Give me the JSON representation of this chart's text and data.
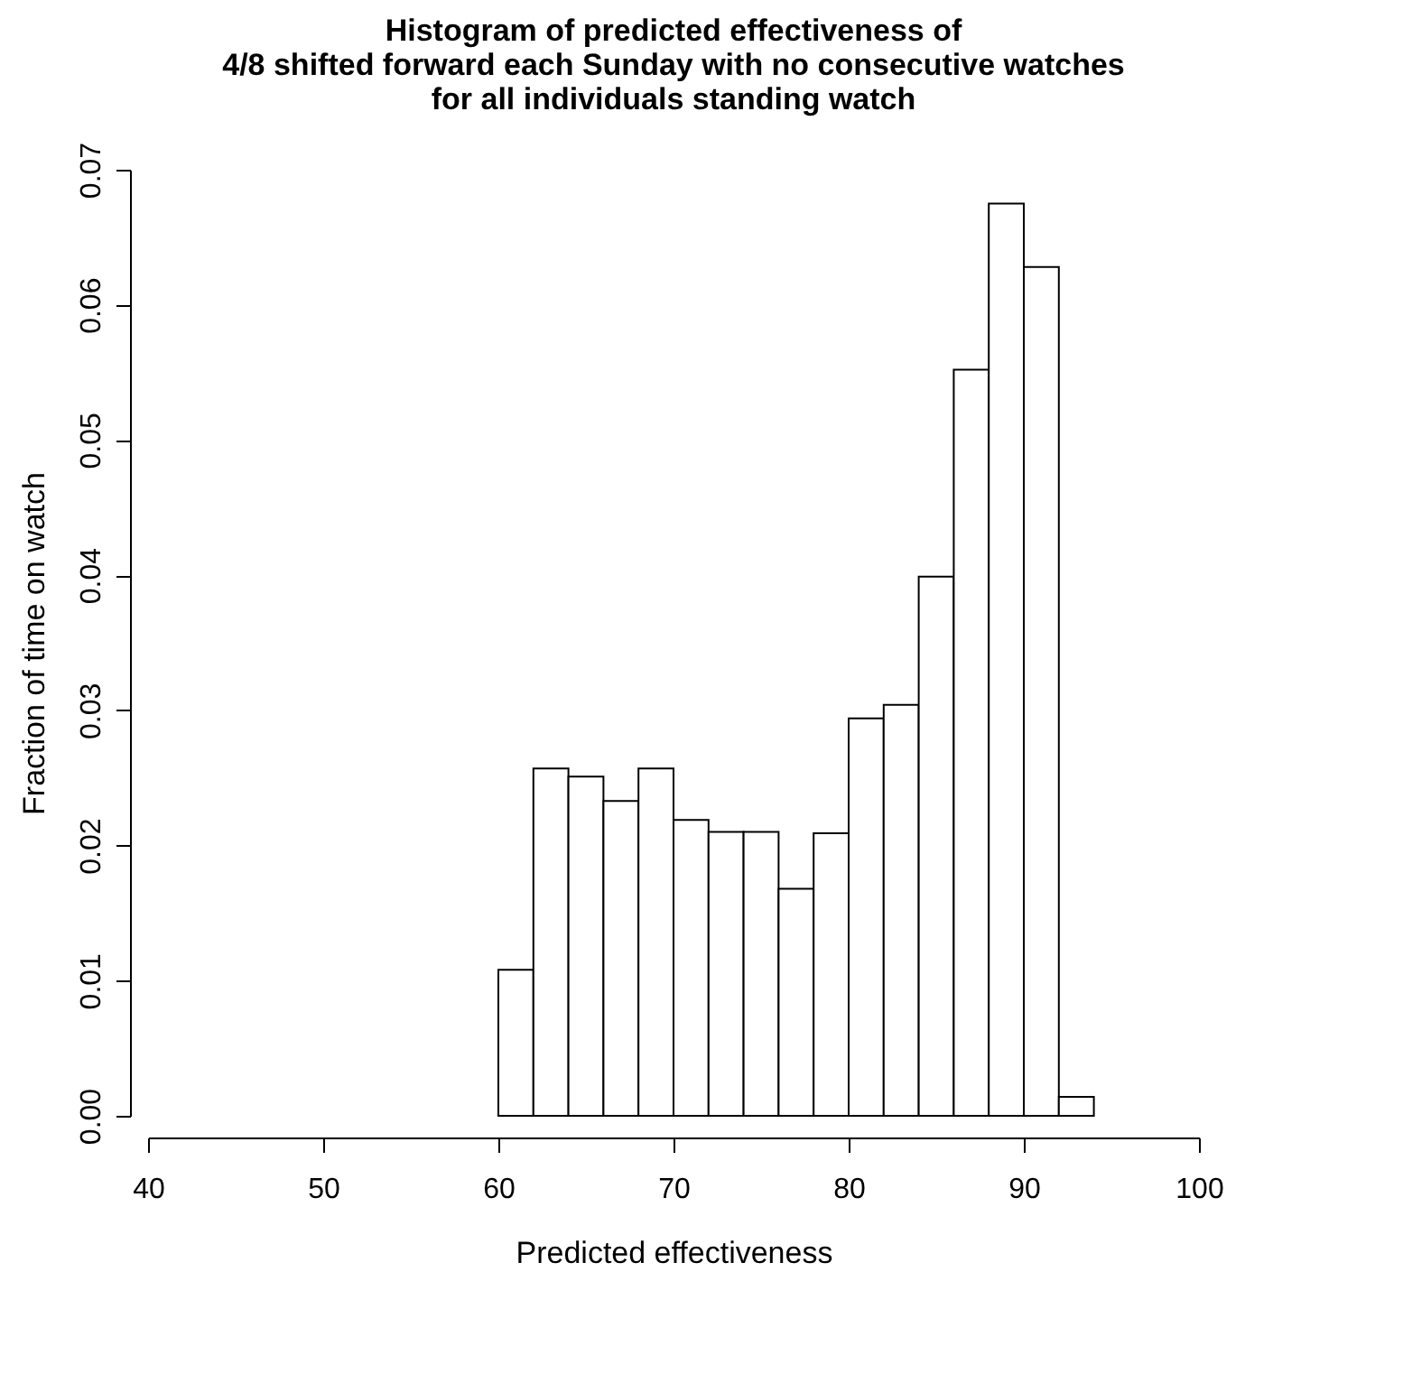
{
  "chart_data": {
    "type": "histogram",
    "title": "Histogram of predicted effectiveness of\n4/8 shifted forward each Sunday with no consecutive watches\nfor all individuals standing watch",
    "xlabel": "Predicted effectiveness",
    "ylabel": "Fraction of time on watch",
    "bins": [
      60,
      62,
      64,
      66,
      68,
      70,
      72,
      74,
      76,
      78,
      80,
      82,
      84,
      86,
      88,
      90,
      92,
      94
    ],
    "values": [
      0.0108,
      0.0257,
      0.0251,
      0.0233,
      0.0257,
      0.0219,
      0.021,
      0.021,
      0.0168,
      0.0209,
      0.0294,
      0.0304,
      0.0399,
      0.0552,
      0.0675,
      0.0628,
      0.0014
    ],
    "color": "#ffffff",
    "xlim": [
      40,
      100
    ],
    "xticks": [
      40,
      50,
      60,
      70,
      80,
      90,
      100
    ],
    "ylim": [
      0,
      0.07
    ],
    "yticks": [
      {
        "value": 0,
        "label": "0.00"
      },
      0.01,
      0.02,
      0.03,
      0.04,
      0.05,
      0.06,
      0.07
    ],
    "grid": false
  }
}
